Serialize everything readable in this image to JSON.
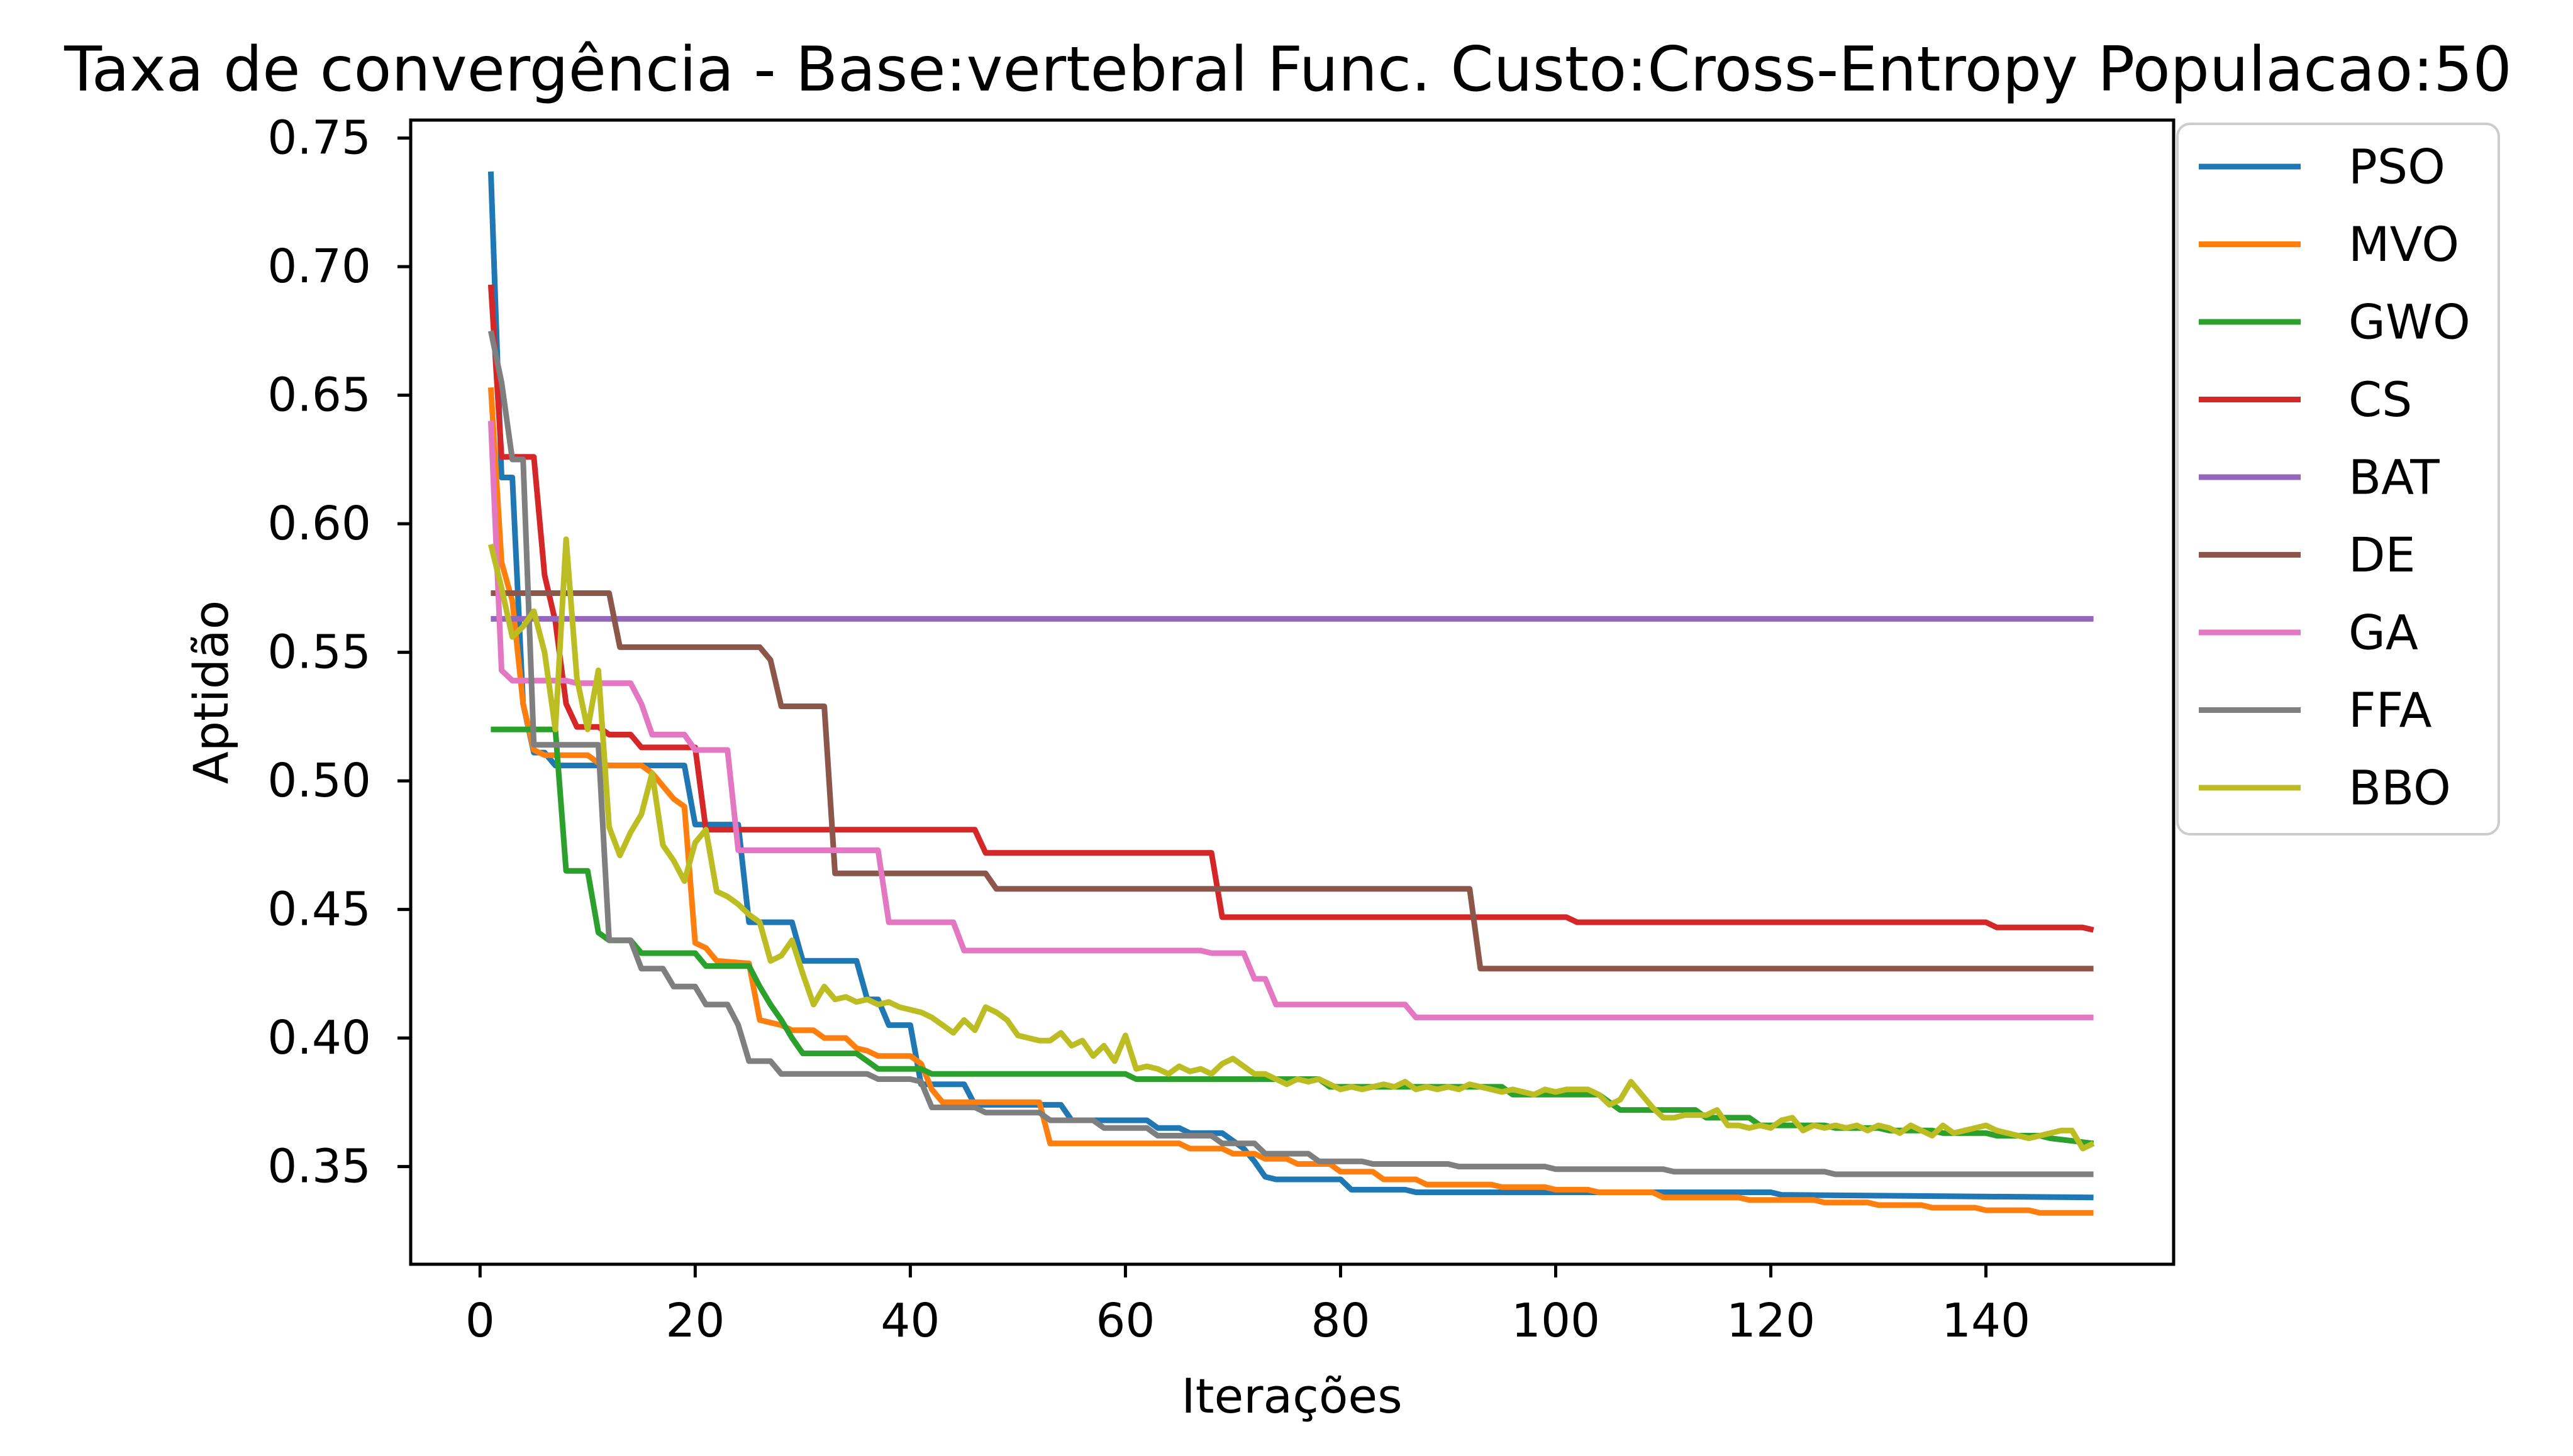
{
  "chart_data": {
    "type": "line",
    "title": "Taxa de convergência - Base:vertebral Func. Custo:Cross-Entropy Populacao:50",
    "xlabel": "Iterações",
    "ylabel": "Aptidão",
    "xlim": [
      -6.45,
      157.45
    ],
    "ylim": [
      0.312,
      0.757
    ],
    "x_ticks": [
      0,
      20,
      40,
      60,
      80,
      100,
      120,
      140
    ],
    "x_tick_labels": [
      "0",
      "20",
      "40",
      "60",
      "80",
      "100",
      "120",
      "140"
    ],
    "y_ticks": [
      0.35,
      0.4,
      0.45,
      0.5,
      0.55,
      0.6,
      0.65,
      0.7,
      0.75
    ],
    "y_tick_labels": [
      "0.35",
      "0.40",
      "0.45",
      "0.50",
      "0.55",
      "0.60",
      "0.65",
      "0.70",
      "0.75"
    ],
    "grid": false,
    "legend_position": "outside top-right",
    "series": [
      {
        "name": "PSO",
        "color": "#1f77b4",
        "x": [
          1,
          2,
          3,
          4,
          5,
          6,
          7,
          19,
          20,
          24,
          25,
          29,
          30,
          35,
          36,
          37,
          38,
          40,
          41,
          45,
          46,
          54,
          55,
          62,
          63,
          65,
          66,
          69,
          70,
          71,
          72,
          73,
          74,
          80,
          81,
          86,
          87,
          120,
          121,
          150
        ],
        "y": [
          0.737,
          0.618,
          0.618,
          0.53,
          0.511,
          0.511,
          0.506,
          0.506,
          0.483,
          0.483,
          0.445,
          0.445,
          0.43,
          0.43,
          0.415,
          0.415,
          0.405,
          0.405,
          0.382,
          0.382,
          0.374,
          0.374,
          0.368,
          0.368,
          0.365,
          0.365,
          0.363,
          0.363,
          0.36,
          0.357,
          0.352,
          0.346,
          0.345,
          0.345,
          0.341,
          0.341,
          0.34,
          0.34,
          0.339,
          0.338
        ]
      },
      {
        "name": "MVO",
        "color": "#ff7f0e",
        "x": [
          1,
          2,
          3,
          4,
          5,
          6,
          10,
          11,
          12,
          15,
          16,
          17,
          18,
          19,
          20,
          21,
          22,
          25,
          26,
          27,
          28,
          29,
          31,
          32,
          34,
          35,
          36,
          37,
          40,
          41,
          42,
          43,
          52,
          53,
          65,
          66,
          69,
          70,
          72,
          73,
          75,
          76,
          79,
          80,
          83,
          84,
          87,
          88,
          94,
          95,
          99,
          100,
          103,
          104,
          109,
          110,
          117,
          118,
          124,
          125,
          129,
          130,
          134,
          135,
          139,
          140,
          144,
          145,
          150
        ],
        "y": [
          0.653,
          0.585,
          0.57,
          0.53,
          0.512,
          0.51,
          0.51,
          0.507,
          0.506,
          0.506,
          0.503,
          0.498,
          0.493,
          0.49,
          0.437,
          0.435,
          0.43,
          0.429,
          0.407,
          0.406,
          0.405,
          0.403,
          0.403,
          0.4,
          0.4,
          0.396,
          0.395,
          0.393,
          0.393,
          0.39,
          0.38,
          0.375,
          0.375,
          0.359,
          0.359,
          0.357,
          0.357,
          0.355,
          0.355,
          0.353,
          0.353,
          0.351,
          0.351,
          0.348,
          0.348,
          0.345,
          0.345,
          0.343,
          0.343,
          0.342,
          0.342,
          0.341,
          0.341,
          0.34,
          0.34,
          0.338,
          0.338,
          0.337,
          0.337,
          0.336,
          0.336,
          0.335,
          0.335,
          0.334,
          0.334,
          0.333,
          0.333,
          0.332,
          0.332
        ]
      },
      {
        "name": "GWO",
        "color": "#2ca02c",
        "x": [
          1,
          7,
          8,
          10,
          11,
          12,
          14,
          15,
          20,
          21,
          25,
          26,
          27,
          28,
          29,
          30,
          35,
          36,
          37,
          41,
          42,
          60,
          61,
          78,
          79,
          95,
          96,
          104,
          105,
          106,
          113,
          114,
          118,
          119,
          125,
          126,
          130,
          131,
          135,
          136,
          140,
          141,
          145,
          146,
          150
        ],
        "y": [
          0.52,
          0.52,
          0.465,
          0.465,
          0.441,
          0.438,
          0.438,
          0.433,
          0.433,
          0.428,
          0.428,
          0.42,
          0.413,
          0.407,
          0.4,
          0.394,
          0.394,
          0.391,
          0.388,
          0.388,
          0.386,
          0.386,
          0.384,
          0.384,
          0.381,
          0.381,
          0.378,
          0.378,
          0.375,
          0.372,
          0.372,
          0.369,
          0.369,
          0.366,
          0.366,
          0.365,
          0.365,
          0.364,
          0.364,
          0.363,
          0.363,
          0.362,
          0.362,
          0.361,
          0.359
        ]
      },
      {
        "name": "CS",
        "color": "#d62728",
        "x": [
          1,
          2,
          5,
          6,
          7,
          8,
          9,
          11,
          12,
          14,
          15,
          20,
          21,
          46,
          47,
          68,
          69,
          101,
          102,
          140,
          141,
          149,
          150
        ],
        "y": [
          0.693,
          0.626,
          0.626,
          0.58,
          0.562,
          0.53,
          0.521,
          0.521,
          0.518,
          0.518,
          0.513,
          0.513,
          0.481,
          0.481,
          0.472,
          0.472,
          0.447,
          0.447,
          0.445,
          0.445,
          0.443,
          0.443,
          0.442
        ]
      },
      {
        "name": "BAT",
        "color": "#9467bd",
        "x": [
          1,
          150
        ],
        "y": [
          0.563,
          0.563
        ]
      },
      {
        "name": "DE",
        "color": "#8c564b",
        "x": [
          1,
          12,
          13,
          26,
          27,
          28,
          32,
          33,
          47,
          48,
          92,
          93,
          150
        ],
        "y": [
          0.573,
          0.573,
          0.552,
          0.552,
          0.547,
          0.529,
          0.529,
          0.464,
          0.464,
          0.458,
          0.458,
          0.427,
          0.427
        ]
      },
      {
        "name": "GA",
        "color": "#e377c2",
        "x": [
          1,
          2,
          3,
          8,
          9,
          14,
          15,
          16,
          19,
          20,
          23,
          24,
          37,
          38,
          44,
          45,
          67,
          68,
          71,
          72,
          73,
          74,
          86,
          87,
          150
        ],
        "y": [
          0.64,
          0.543,
          0.539,
          0.539,
          0.538,
          0.538,
          0.53,
          0.518,
          0.518,
          0.512,
          0.512,
          0.473,
          0.473,
          0.445,
          0.445,
          0.434,
          0.434,
          0.433,
          0.433,
          0.423,
          0.423,
          0.413,
          0.413,
          0.408,
          0.408
        ]
      },
      {
        "name": "FFA",
        "color": "#7f7f7f",
        "x": [
          1,
          2,
          3,
          4,
          5,
          11,
          12,
          14,
          15,
          17,
          18,
          20,
          21,
          23,
          24,
          25,
          27,
          28,
          36,
          37,
          40,
          41,
          42,
          46,
          47,
          52,
          53,
          57,
          58,
          62,
          63,
          68,
          69,
          72,
          73,
          77,
          78,
          82,
          83,
          90,
          91,
          99,
          100,
          110,
          111,
          125,
          126,
          150
        ],
        "y": [
          0.675,
          0.655,
          0.625,
          0.625,
          0.514,
          0.514,
          0.438,
          0.438,
          0.427,
          0.427,
          0.42,
          0.42,
          0.413,
          0.413,
          0.405,
          0.391,
          0.391,
          0.386,
          0.386,
          0.384,
          0.384,
          0.383,
          0.373,
          0.373,
          0.371,
          0.371,
          0.368,
          0.368,
          0.365,
          0.365,
          0.362,
          0.362,
          0.359,
          0.359,
          0.355,
          0.355,
          0.352,
          0.352,
          0.351,
          0.351,
          0.35,
          0.35,
          0.349,
          0.349,
          0.348,
          0.348,
          0.347,
          0.347
        ]
      },
      {
        "name": "BBO",
        "color": "#bcbd22",
        "x": [
          1,
          2,
          3,
          4,
          5,
          6,
          7,
          8,
          9,
          10,
          11,
          12,
          13,
          14,
          15,
          16,
          17,
          18,
          19,
          20,
          21,
          22,
          23,
          24,
          25,
          26,
          27,
          28,
          29,
          30,
          31,
          32,
          33,
          34,
          35,
          36,
          37,
          38,
          39,
          40,
          41,
          42,
          43,
          44,
          45,
          46,
          47,
          48,
          49,
          50,
          51,
          52,
          53,
          54,
          55,
          56,
          57,
          58,
          59,
          60,
          61,
          62,
          63,
          64,
          65,
          66,
          67,
          68,
          69,
          70,
          71,
          72,
          73,
          74,
          75,
          76,
          77,
          78,
          79,
          80,
          81,
          82,
          83,
          84,
          85,
          86,
          87,
          88,
          89,
          90,
          91,
          92,
          93,
          94,
          95,
          96,
          97,
          98,
          99,
          100,
          101,
          102,
          103,
          104,
          105,
          106,
          107,
          108,
          109,
          110,
          111,
          112,
          113,
          114,
          115,
          116,
          117,
          118,
          119,
          120,
          121,
          122,
          123,
          124,
          125,
          126,
          127,
          128,
          129,
          130,
          131,
          132,
          133,
          134,
          135,
          136,
          137,
          138,
          139,
          140,
          141,
          142,
          143,
          144,
          145,
          146,
          147,
          148,
          149,
          150
        ],
        "y": [
          0.592,
          0.575,
          0.556,
          0.56,
          0.566,
          0.55,
          0.52,
          0.594,
          0.54,
          0.52,
          0.543,
          0.482,
          0.471,
          0.48,
          0.487,
          0.503,
          0.475,
          0.469,
          0.461,
          0.476,
          0.481,
          0.457,
          0.455,
          0.452,
          0.448,
          0.445,
          0.43,
          0.432,
          0.438,
          0.425,
          0.413,
          0.42,
          0.415,
          0.416,
          0.414,
          0.415,
          0.413,
          0.414,
          0.412,
          0.411,
          0.41,
          0.408,
          0.405,
          0.402,
          0.407,
          0.403,
          0.412,
          0.41,
          0.407,
          0.401,
          0.4,
          0.399,
          0.399,
          0.402,
          0.397,
          0.399,
          0.393,
          0.397,
          0.391,
          0.401,
          0.388,
          0.389,
          0.388,
          0.386,
          0.389,
          0.387,
          0.388,
          0.386,
          0.39,
          0.392,
          0.389,
          0.386,
          0.386,
          0.384,
          0.382,
          0.384,
          0.383,
          0.384,
          0.382,
          0.38,
          0.381,
          0.38,
          0.381,
          0.382,
          0.381,
          0.383,
          0.38,
          0.381,
          0.38,
          0.381,
          0.38,
          0.382,
          0.381,
          0.38,
          0.379,
          0.38,
          0.379,
          0.378,
          0.38,
          0.379,
          0.38,
          0.38,
          0.38,
          0.378,
          0.374,
          0.376,
          0.383,
          0.378,
          0.373,
          0.369,
          0.369,
          0.37,
          0.37,
          0.37,
          0.372,
          0.366,
          0.366,
          0.365,
          0.366,
          0.365,
          0.368,
          0.369,
          0.364,
          0.366,
          0.365,
          0.366,
          0.365,
          0.366,
          0.364,
          0.366,
          0.365,
          0.363,
          0.366,
          0.364,
          0.362,
          0.366,
          0.363,
          0.364,
          0.365,
          0.366,
          0.364,
          0.363,
          0.362,
          0.361,
          0.362,
          0.363,
          0.364,
          0.364,
          0.357,
          0.359
        ]
      }
    ]
  }
}
